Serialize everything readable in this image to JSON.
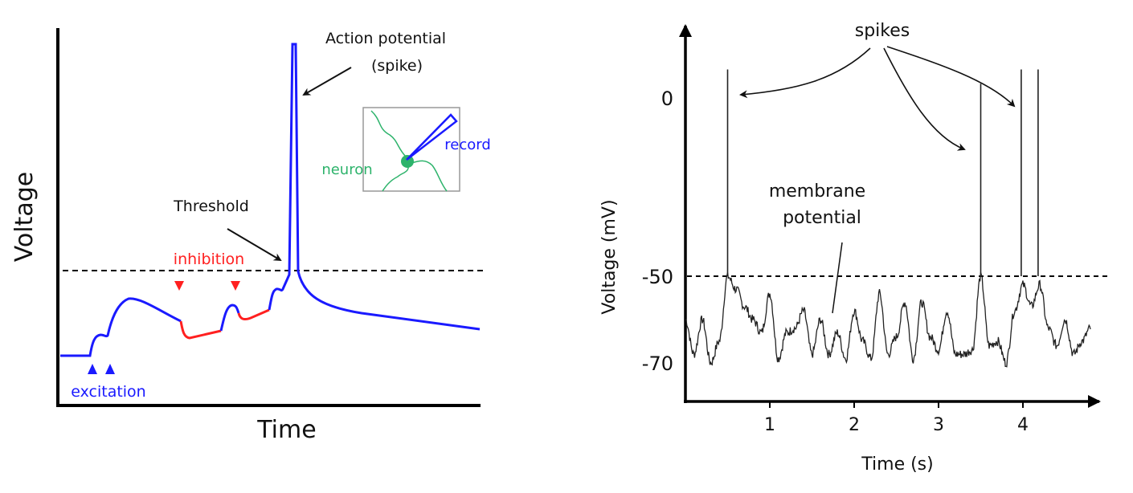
{
  "left_panel": {
    "y_label": "Voltage",
    "x_label": "Time",
    "annotations": {
      "action_potential_line1": "Action potential",
      "action_potential_line2": "(spike)",
      "threshold": "Threshold",
      "inhibition": "inhibition",
      "excitation": "excitation"
    },
    "inset": {
      "neuron": "neuron",
      "record": "record"
    },
    "colors": {
      "excitation": "#1a1aff",
      "inhibition": "#ff2020",
      "neuron": "#2db36b",
      "axis": "#000000"
    }
  },
  "chart_data": {
    "type": "line",
    "title": "",
    "xlabel": "Time (s)",
    "ylabel": "Voltage (mV)",
    "x_ticks": [
      "1",
      "2",
      "3",
      "4"
    ],
    "x_tick_values": [
      1,
      2,
      3,
      4
    ],
    "y_ticks": [
      "0",
      "-50",
      "-70"
    ],
    "y_tick_values": [
      0,
      -50,
      -70
    ],
    "xlim": [
      0,
      4.9
    ],
    "threshold_mV": -50,
    "spike_times_s": [
      0.5,
      3.5,
      3.98,
      4.18
    ],
    "spike_peaks_mV": [
      8,
      4,
      8,
      8
    ],
    "trace": {
      "t_start": 0,
      "t_step": 0.1,
      "values_mV": [
        -60,
        -68,
        -60,
        -70,
        -65,
        -50,
        -53,
        -57,
        -60,
        -63,
        -54,
        -69,
        -63,
        -62,
        -58,
        -68,
        -60,
        -68,
        -63,
        -69,
        -58,
        -65,
        -69,
        -54,
        -68,
        -64,
        -56,
        -69,
        -56,
        -64,
        -67,
        -58,
        -68,
        -68,
        -67,
        -50,
        -66,
        -65,
        -70,
        -58,
        -52,
        -57,
        -52,
        -62,
        -66,
        -60,
        -68,
        -65,
        -62
      ]
    },
    "annotations": {
      "spikes": "spikes",
      "membrane_line1": "membrane",
      "membrane_line2": "potential"
    }
  }
}
